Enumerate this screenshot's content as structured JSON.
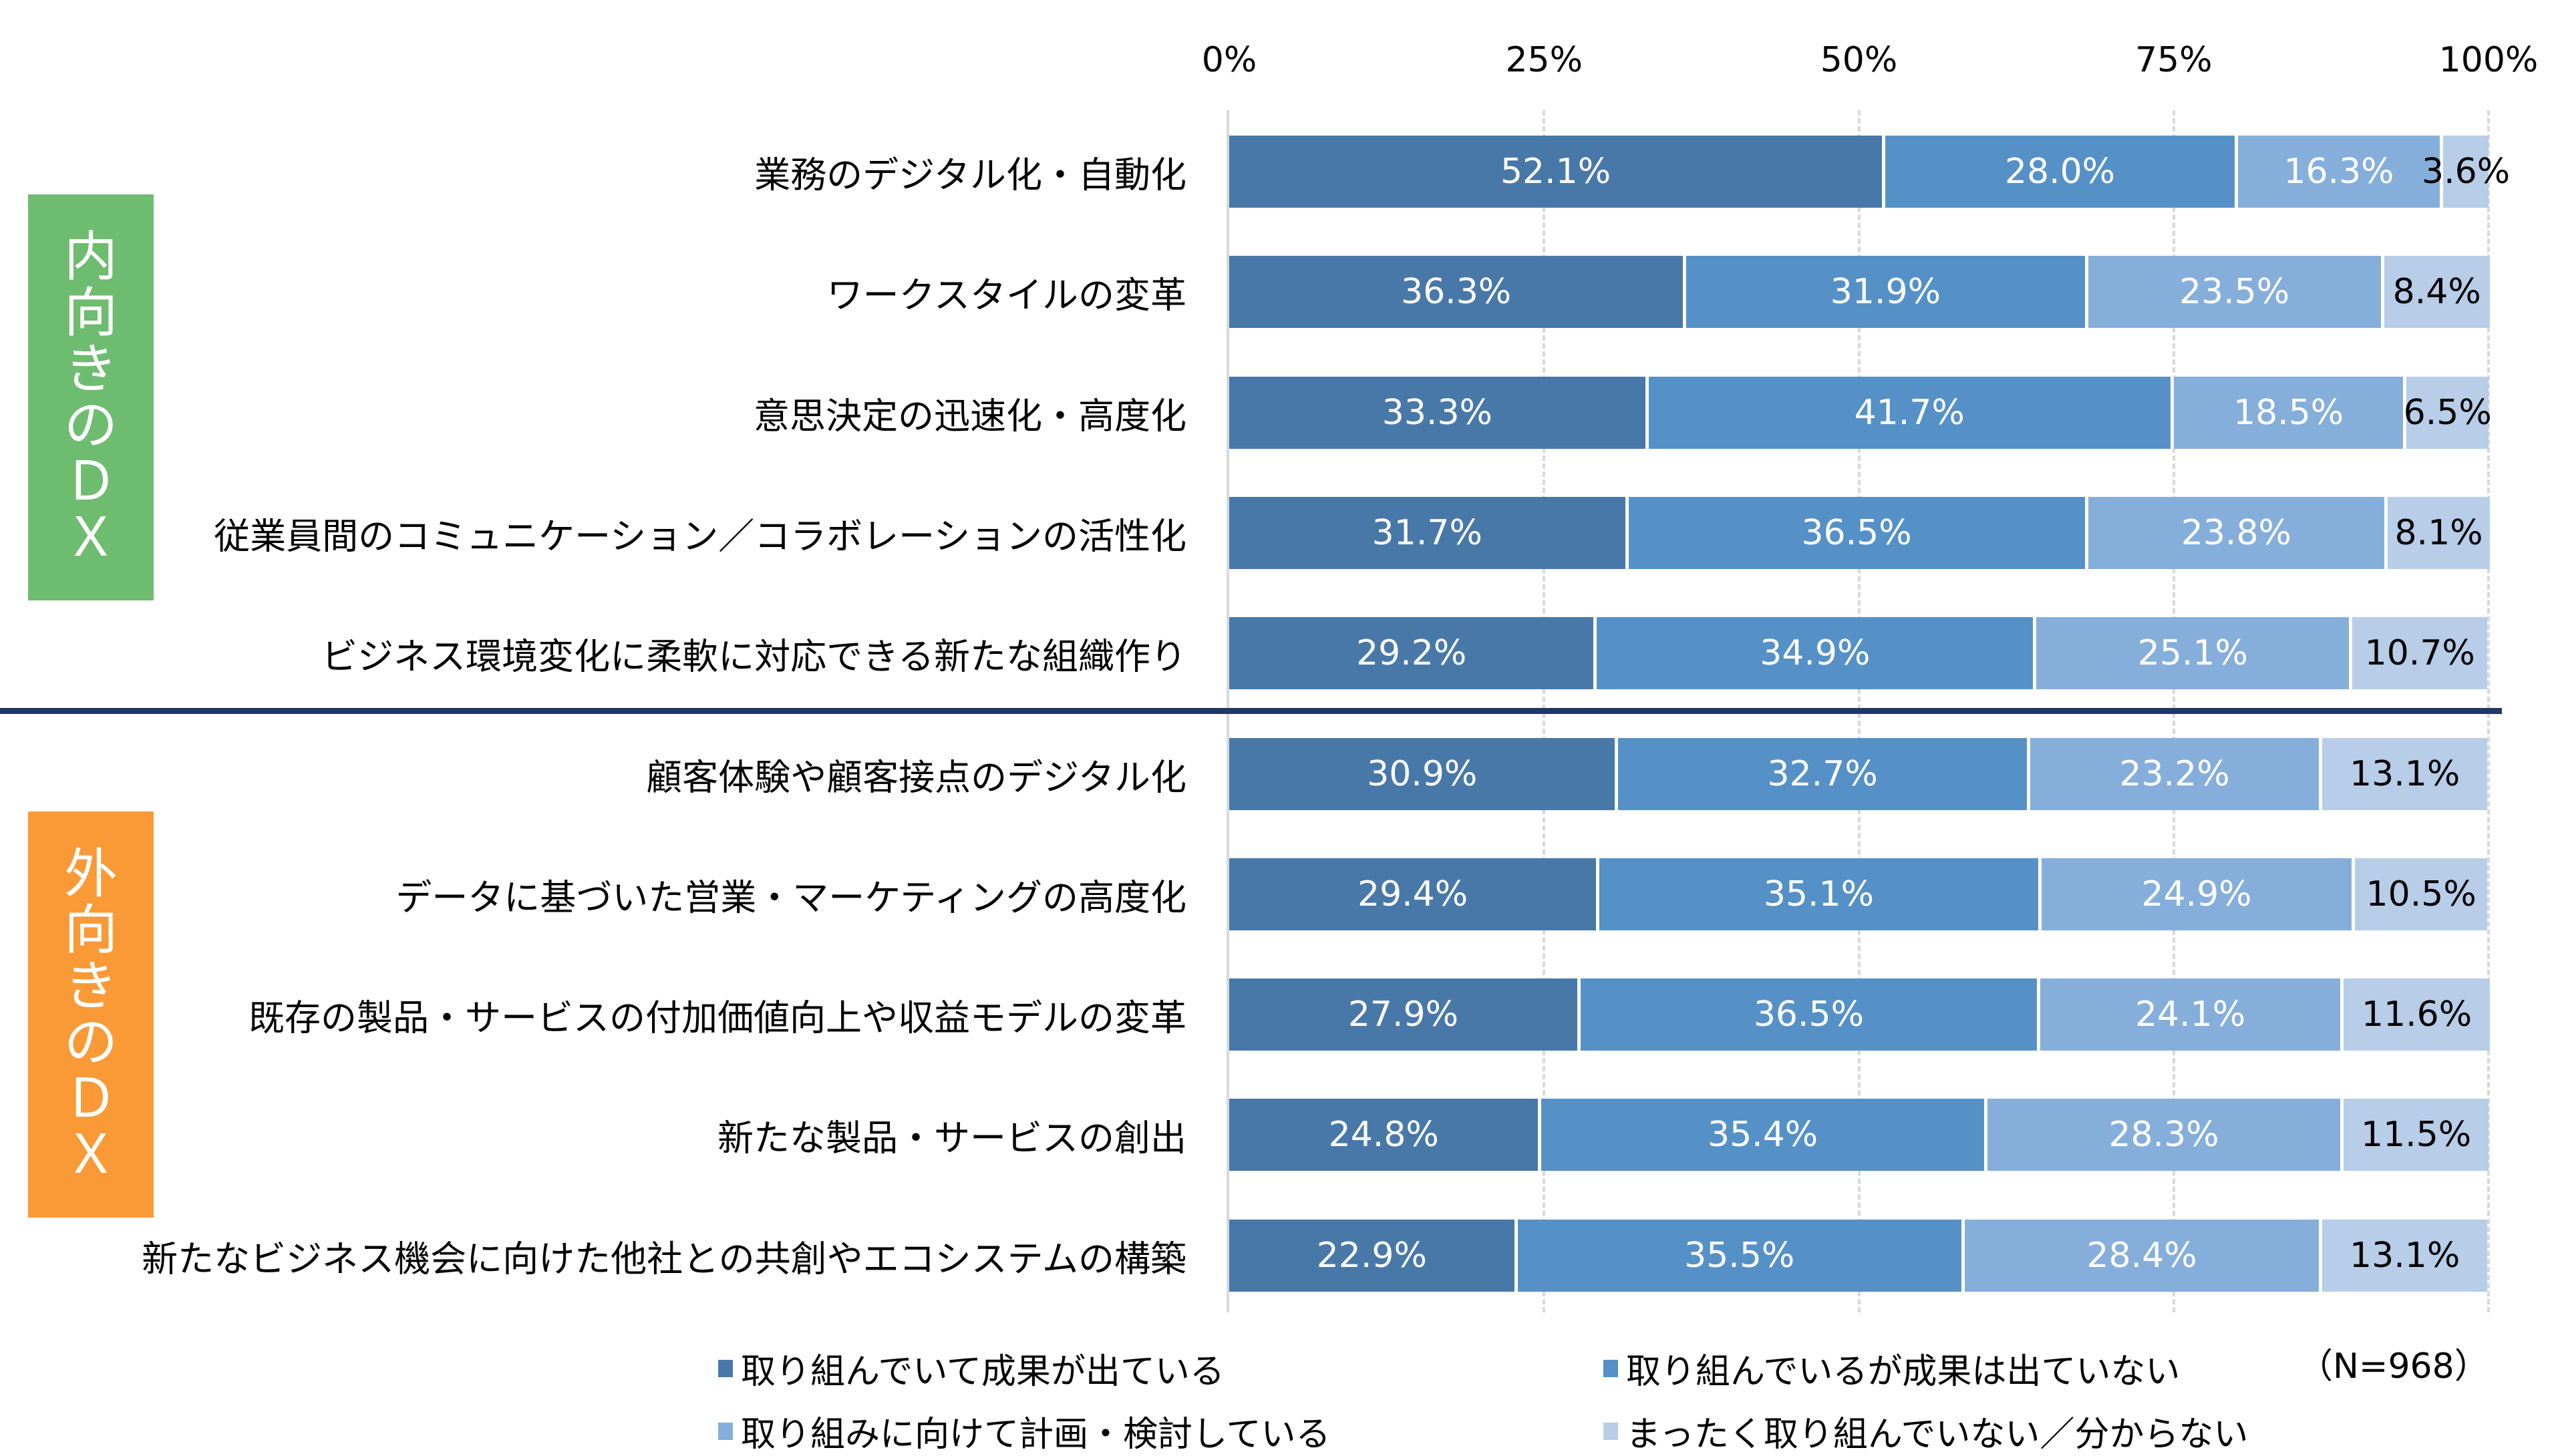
{
  "chart_data": {
    "type": "bar",
    "orientation": "horizontal",
    "stacked": "100%",
    "xlim": [
      0,
      100
    ],
    "x_ticks": [
      "0%",
      "25%",
      "50%",
      "75%",
      "100%"
    ],
    "x_tick_position": "top",
    "grid": true,
    "categories": [
      "業務のデジタル化・自動化",
      "ワークスタイルの変革",
      "意思決定の迅速化・高度化",
      "従業員間のコミュニケーション／コラボレーションの活性化",
      "ビジネス環境変化に柔軟に対応できる新たな組織作り",
      "顧客体験や顧客接点のデジタル化",
      "データに基づいた営業・マーケティングの高度化",
      "既存の製品・サービスの付加価値向上や収益モデルの変革",
      "新たな製品・サービスの創出",
      "新たなビジネス機会に向けた他社との共創やエコシステムの構築"
    ],
    "series": [
      {
        "name": "取り組んでいて成果が出ている",
        "color": "#4878A8",
        "values": [
          52.1,
          36.3,
          33.3,
          31.7,
          29.2,
          30.9,
          29.4,
          27.9,
          24.8,
          22.9
        ]
      },
      {
        "name": "取り組んでいるが成果は出ていない",
        "color": "#5591C7",
        "values": [
          28.0,
          31.9,
          41.7,
          36.5,
          34.9,
          32.7,
          35.1,
          36.5,
          35.4,
          35.5
        ]
      },
      {
        "name": "取り組みに向けて計画・検討している",
        "color": "#85AEDB",
        "values": [
          16.3,
          23.5,
          18.5,
          23.8,
          25.1,
          23.2,
          24.9,
          24.1,
          28.3,
          28.4
        ]
      },
      {
        "name": "まったく取り組んでいない／分からない",
        "color": "#B7CDE8",
        "values": [
          3.6,
          8.4,
          6.5,
          8.1,
          10.7,
          13.1,
          10.5,
          11.6,
          11.5,
          13.1
        ]
      }
    ],
    "legend_placement": "bottom",
    "note": "（N=968）",
    "groups": [
      {
        "label": "内向きのＤＸ",
        "chars": [
          "内",
          "向",
          "き",
          "の",
          "Ｄ",
          "Ｘ"
        ],
        "color": "#6EBC70",
        "rows": [
          0,
          1,
          2,
          3,
          4
        ]
      },
      {
        "label": "外向きのＤＸ",
        "chars": [
          "外",
          "向",
          "き",
          "の",
          "Ｄ",
          "Ｘ"
        ],
        "color": "#FA9A36",
        "rows": [
          5,
          6,
          7,
          8,
          9
        ]
      }
    ],
    "divider_color": "#1F3864"
  }
}
